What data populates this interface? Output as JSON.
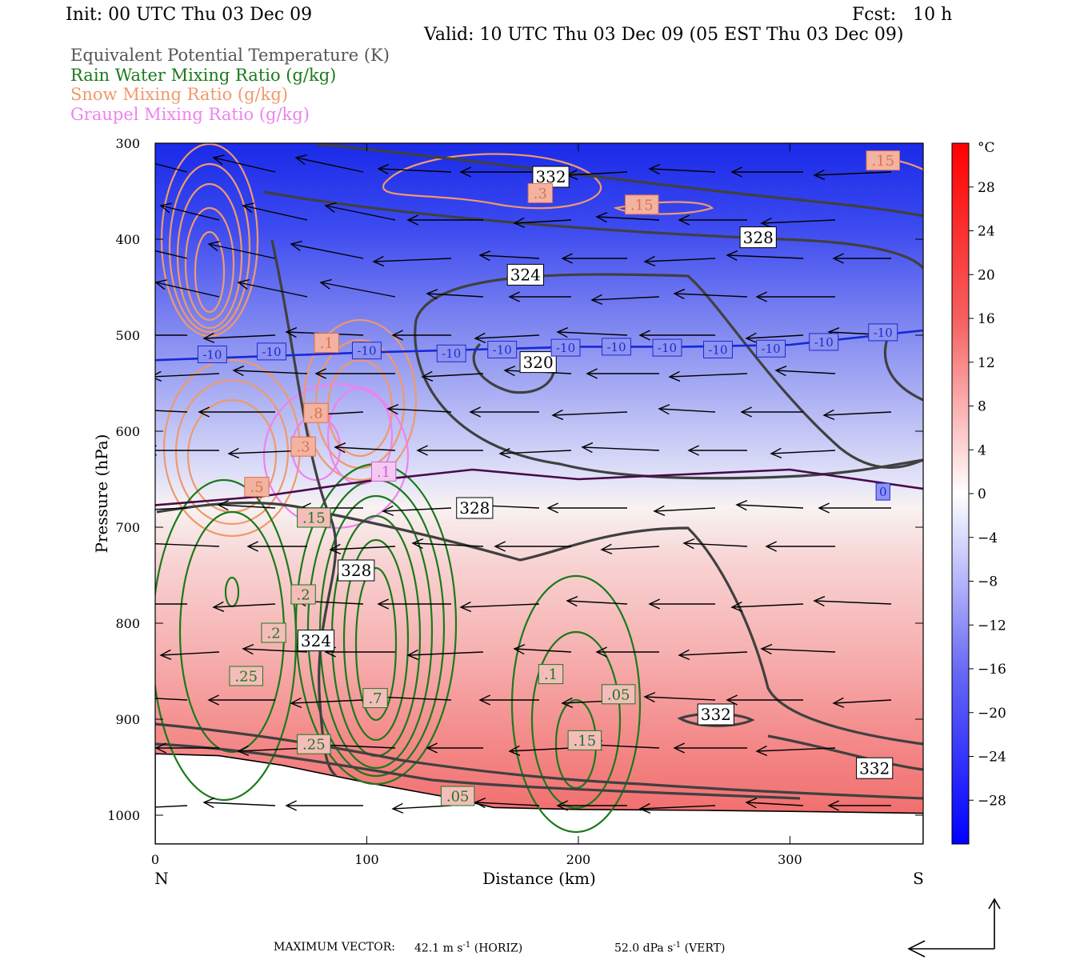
{
  "header": {
    "init": "Init: 00 UTC Thu 03 Dec 09",
    "fcst": "Fcst:   10 h",
    "valid": "Valid: 10 UTC Thu 03 Dec 09 (05 EST Thu 03 Dec 09)"
  },
  "legend": [
    {
      "label": "Equivalent Potential Temperature (K)",
      "color": "#555555"
    },
    {
      "label": "Rain Water Mixing Ratio (g/kg)",
      "color": "#1a7a1a"
    },
    {
      "label": "Snow Mixing Ratio (g/kg)",
      "color": "#f0996b"
    },
    {
      "label": "Graupel Mixing Ratio (g/kg)",
      "color": "#ee82ee"
    }
  ],
  "chart_data": {
    "type": "cross-section",
    "xlabel": "Distance (km)",
    "ylabel": "Pressure (hPa)",
    "xlim": [
      0,
      363
    ],
    "ylim": [
      300,
      1030
    ],
    "x_ticks": [
      "0",
      "100",
      "200",
      "300"
    ],
    "x_tick_values": [
      0,
      100,
      200,
      300
    ],
    "y_ticks": [
      "300",
      "400",
      "500",
      "600",
      "700",
      "800",
      "900",
      "1000"
    ],
    "y_tick_values": [
      300,
      400,
      500,
      600,
      700,
      800,
      900,
      1000
    ],
    "left_end_label": "N",
    "right_end_label": "S",
    "colorbar": {
      "unit": "°C",
      "ticks": [
        "28",
        "24",
        "20",
        "16",
        "12",
        "8",
        "4",
        "0",
        "−4",
        "−8",
        "−12",
        "−16",
        "−20",
        "−24",
        "−28"
      ],
      "tick_values": [
        28,
        24,
        20,
        16,
        12,
        8,
        4,
        0,
        -4,
        -8,
        -12,
        -16,
        -20,
        -24,
        -28
      ],
      "range": [
        -32,
        32
      ]
    },
    "temperature_field": [
      {
        "p": 300,
        "t": -31
      },
      {
        "p": 400,
        "t": -22
      },
      {
        "p": 500,
        "t": -10
      },
      {
        "p": 600,
        "t": -3
      },
      {
        "p": 650,
        "t": 0
      },
      {
        "p": 700,
        "t": 3
      },
      {
        "p": 800,
        "t": 7
      },
      {
        "p": 900,
        "t": 12
      },
      {
        "p": 1000,
        "t": 15
      }
    ],
    "isotherms": [
      {
        "label": "-10",
        "points": [
          [
            0,
            526
          ],
          [
            50,
            522
          ],
          [
            100,
            518
          ],
          [
            150,
            515
          ],
          [
            200,
            512
          ],
          [
            250,
            512
          ],
          [
            300,
            510
          ],
          [
            363,
            495
          ]
        ]
      },
      {
        "label": "0",
        "points": [
          [
            0,
            677
          ],
          [
            50,
            668
          ],
          [
            100,
            652
          ],
          [
            150,
            640
          ],
          [
            200,
            650
          ],
          [
            250,
            645
          ],
          [
            300,
            640
          ],
          [
            363,
            660
          ]
        ]
      }
    ],
    "contour_labels": [
      {
        "field": "theta_e",
        "text": "332",
        "x": 187,
        "p": 335
      },
      {
        "field": "theta_e",
        "text": "328",
        "x": 285,
        "p": 398
      },
      {
        "field": "theta_e",
        "text": "324",
        "x": 175,
        "p": 437
      },
      {
        "field": "theta_e",
        "text": "320",
        "x": 181,
        "p": 528
      },
      {
        "field": "theta_e",
        "text": "328",
        "x": 151,
        "p": 680
      },
      {
        "field": "theta_e",
        "text": "328",
        "x": 95,
        "p": 745
      },
      {
        "field": "theta_e",
        "text": "324",
        "x": 76,
        "p": 818
      },
      {
        "field": "theta_e",
        "text": "332",
        "x": 265,
        "p": 895
      },
      {
        "field": "theta_e",
        "text": "332",
        "x": 340,
        "p": 951
      },
      {
        "field": "isotherm",
        "text": "-10",
        "x": 27,
        "p": 520
      },
      {
        "field": "isotherm",
        "text": "-10",
        "x": 55,
        "p": 517
      },
      {
        "field": "isotherm",
        "text": "-10",
        "x": 100,
        "p": 516
      },
      {
        "field": "isotherm",
        "text": "-10",
        "x": 140,
        "p": 519
      },
      {
        "field": "isotherm",
        "text": "-10",
        "x": 164,
        "p": 515
      },
      {
        "field": "isotherm",
        "text": "-10",
        "x": 194,
        "p": 513
      },
      {
        "field": "isotherm",
        "text": "-10",
        "x": 218,
        "p": 512
      },
      {
        "field": "isotherm",
        "text": "-10",
        "x": 242,
        "p": 513
      },
      {
        "field": "isotherm",
        "text": "-10",
        "x": 266,
        "p": 515
      },
      {
        "field": "isotherm",
        "text": "-10",
        "x": 291,
        "p": 514
      },
      {
        "field": "isotherm",
        "text": "-10",
        "x": 316,
        "p": 507
      },
      {
        "field": "isotherm",
        "text": "-10",
        "x": 344,
        "p": 497
      },
      {
        "field": "isotherm",
        "text": "0",
        "x": 344,
        "p": 663
      },
      {
        "field": "snow",
        "text": ".15",
        "x": 344,
        "p": 318
      },
      {
        "field": "snow",
        "text": ".15",
        "x": 230,
        "p": 364
      },
      {
        "field": "snow",
        "text": ".3",
        "x": 182,
        "p": 352
      },
      {
        "field": "snow",
        "text": ".1",
        "x": 81,
        "p": 508
      },
      {
        "field": "snow",
        "text": ".8",
        "x": 76,
        "p": 581
      },
      {
        "field": "snow",
        "text": ".3",
        "x": 70,
        "p": 616
      },
      {
        "field": "snow",
        "text": ".5",
        "x": 48,
        "p": 658
      },
      {
        "field": "graupel",
        "text": ".1",
        "x": 108,
        "p": 642
      },
      {
        "field": "rain",
        "text": ".15",
        "x": 75,
        "p": 690
      },
      {
        "field": "rain",
        "text": ".2",
        "x": 70,
        "p": 770
      },
      {
        "field": "rain",
        "text": ".2",
        "x": 56,
        "p": 810
      },
      {
        "field": "rain",
        "text": ".25",
        "x": 43,
        "p": 855
      },
      {
        "field": "rain",
        "text": ".7",
        "x": 104,
        "p": 878
      },
      {
        "field": "rain",
        "text": ".25",
        "x": 75,
        "p": 926
      },
      {
        "field": "rain",
        "text": ".1",
        "x": 187,
        "p": 853
      },
      {
        "field": "rain",
        "text": ".05",
        "x": 219,
        "p": 874
      },
      {
        "field": "rain",
        "text": ".15",
        "x": 203,
        "p": 922
      },
      {
        "field": "rain",
        "text": ".05",
        "x": 143,
        "p": 980
      }
    ],
    "terrain_pressure": [
      [
        0,
        936
      ],
      [
        30,
        938
      ],
      [
        60,
        948
      ],
      [
        100,
        966
      ],
      [
        140,
        982
      ],
      [
        160,
        992
      ],
      [
        200,
        994
      ],
      [
        260,
        995
      ],
      [
        300,
        996
      ],
      [
        363,
        998
      ]
    ],
    "wind_arrows_note": "horizontal-dominant leftward (northward) vectors"
  },
  "footer": {
    "label": "MAXIMUM VECTOR:",
    "horiz_value": "42.1",
    "horiz_unit": "m s",
    "horiz_exp": "-1",
    "horiz_tag": "(HORIZ)",
    "vert_value": "52.0",
    "vert_unit": "dPa s",
    "vert_exp": "-1",
    "vert_tag": "(VERT)"
  }
}
